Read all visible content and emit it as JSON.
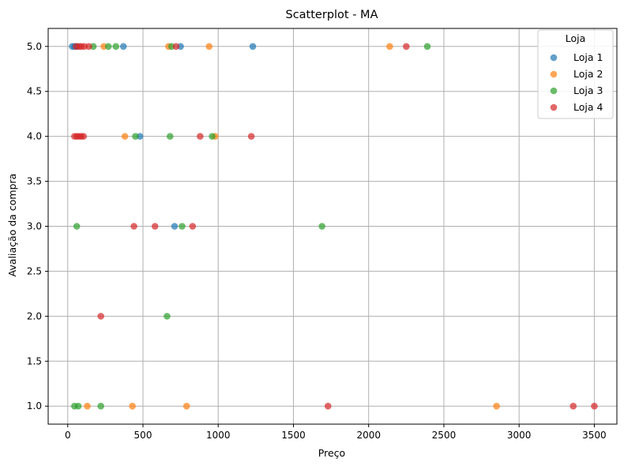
{
  "chart_data": {
    "type": "scatter",
    "title": "Scatterplot - MA",
    "xlabel": "Preço",
    "ylabel": "Avaliação da compra",
    "xlim": [
      -130,
      3650
    ],
    "ylim": [
      0.8,
      5.2
    ],
    "xticks": [
      "0",
      "500",
      "1000",
      "1500",
      "2000",
      "2500",
      "3000",
      "3500"
    ],
    "yticks": [
      "1.0",
      "1.5",
      "2.0",
      "2.5",
      "3.0",
      "3.5",
      "4.0",
      "4.5",
      "5.0"
    ],
    "grid": true,
    "legend": {
      "title": "Loja",
      "placement": "top-right"
    },
    "series": [
      {
        "name": "Loja 1",
        "color": "#1f77b4",
        "points": [
          [
            30,
            5
          ],
          [
            45,
            5
          ],
          [
            60,
            5
          ],
          [
            370,
            5
          ],
          [
            750,
            5
          ],
          [
            1230,
            5
          ],
          [
            480,
            4
          ],
          [
            710,
            3
          ]
        ]
      },
      {
        "name": "Loja 2",
        "color": "#ff7f0e",
        "points": [
          [
            240,
            5
          ],
          [
            670,
            5
          ],
          [
            940,
            5
          ],
          [
            2140,
            5
          ],
          [
            380,
            4
          ],
          [
            980,
            4
          ],
          [
            130,
            1
          ],
          [
            430,
            1
          ],
          [
            790,
            1
          ],
          [
            2850,
            1
          ]
        ]
      },
      {
        "name": "Loja 3",
        "color": "#2ca02c",
        "points": [
          [
            170,
            5
          ],
          [
            270,
            5
          ],
          [
            320,
            5
          ],
          [
            690,
            5
          ],
          [
            450,
            4
          ],
          [
            680,
            4
          ],
          [
            960,
            4
          ],
          [
            2390,
            5
          ],
          [
            60,
            3
          ],
          [
            760,
            3
          ],
          [
            1690,
            3
          ],
          [
            660,
            2
          ],
          [
            45,
            1
          ],
          [
            70,
            1
          ],
          [
            220,
            1
          ]
        ]
      },
      {
        "name": "Loja 4",
        "color": "#d62728",
        "points": [
          [
            55,
            5
          ],
          [
            75,
            5
          ],
          [
            90,
            5
          ],
          [
            110,
            5
          ],
          [
            140,
            5
          ],
          [
            720,
            5
          ],
          [
            2250,
            5
          ],
          [
            45,
            4
          ],
          [
            60,
            4
          ],
          [
            75,
            4
          ],
          [
            90,
            4
          ],
          [
            105,
            4
          ],
          [
            880,
            4
          ],
          [
            1220,
            4
          ],
          [
            440,
            3
          ],
          [
            580,
            3
          ],
          [
            830,
            3
          ],
          [
            220,
            2
          ],
          [
            1730,
            1
          ],
          [
            3360,
            1
          ],
          [
            3500,
            1
          ]
        ]
      }
    ]
  }
}
